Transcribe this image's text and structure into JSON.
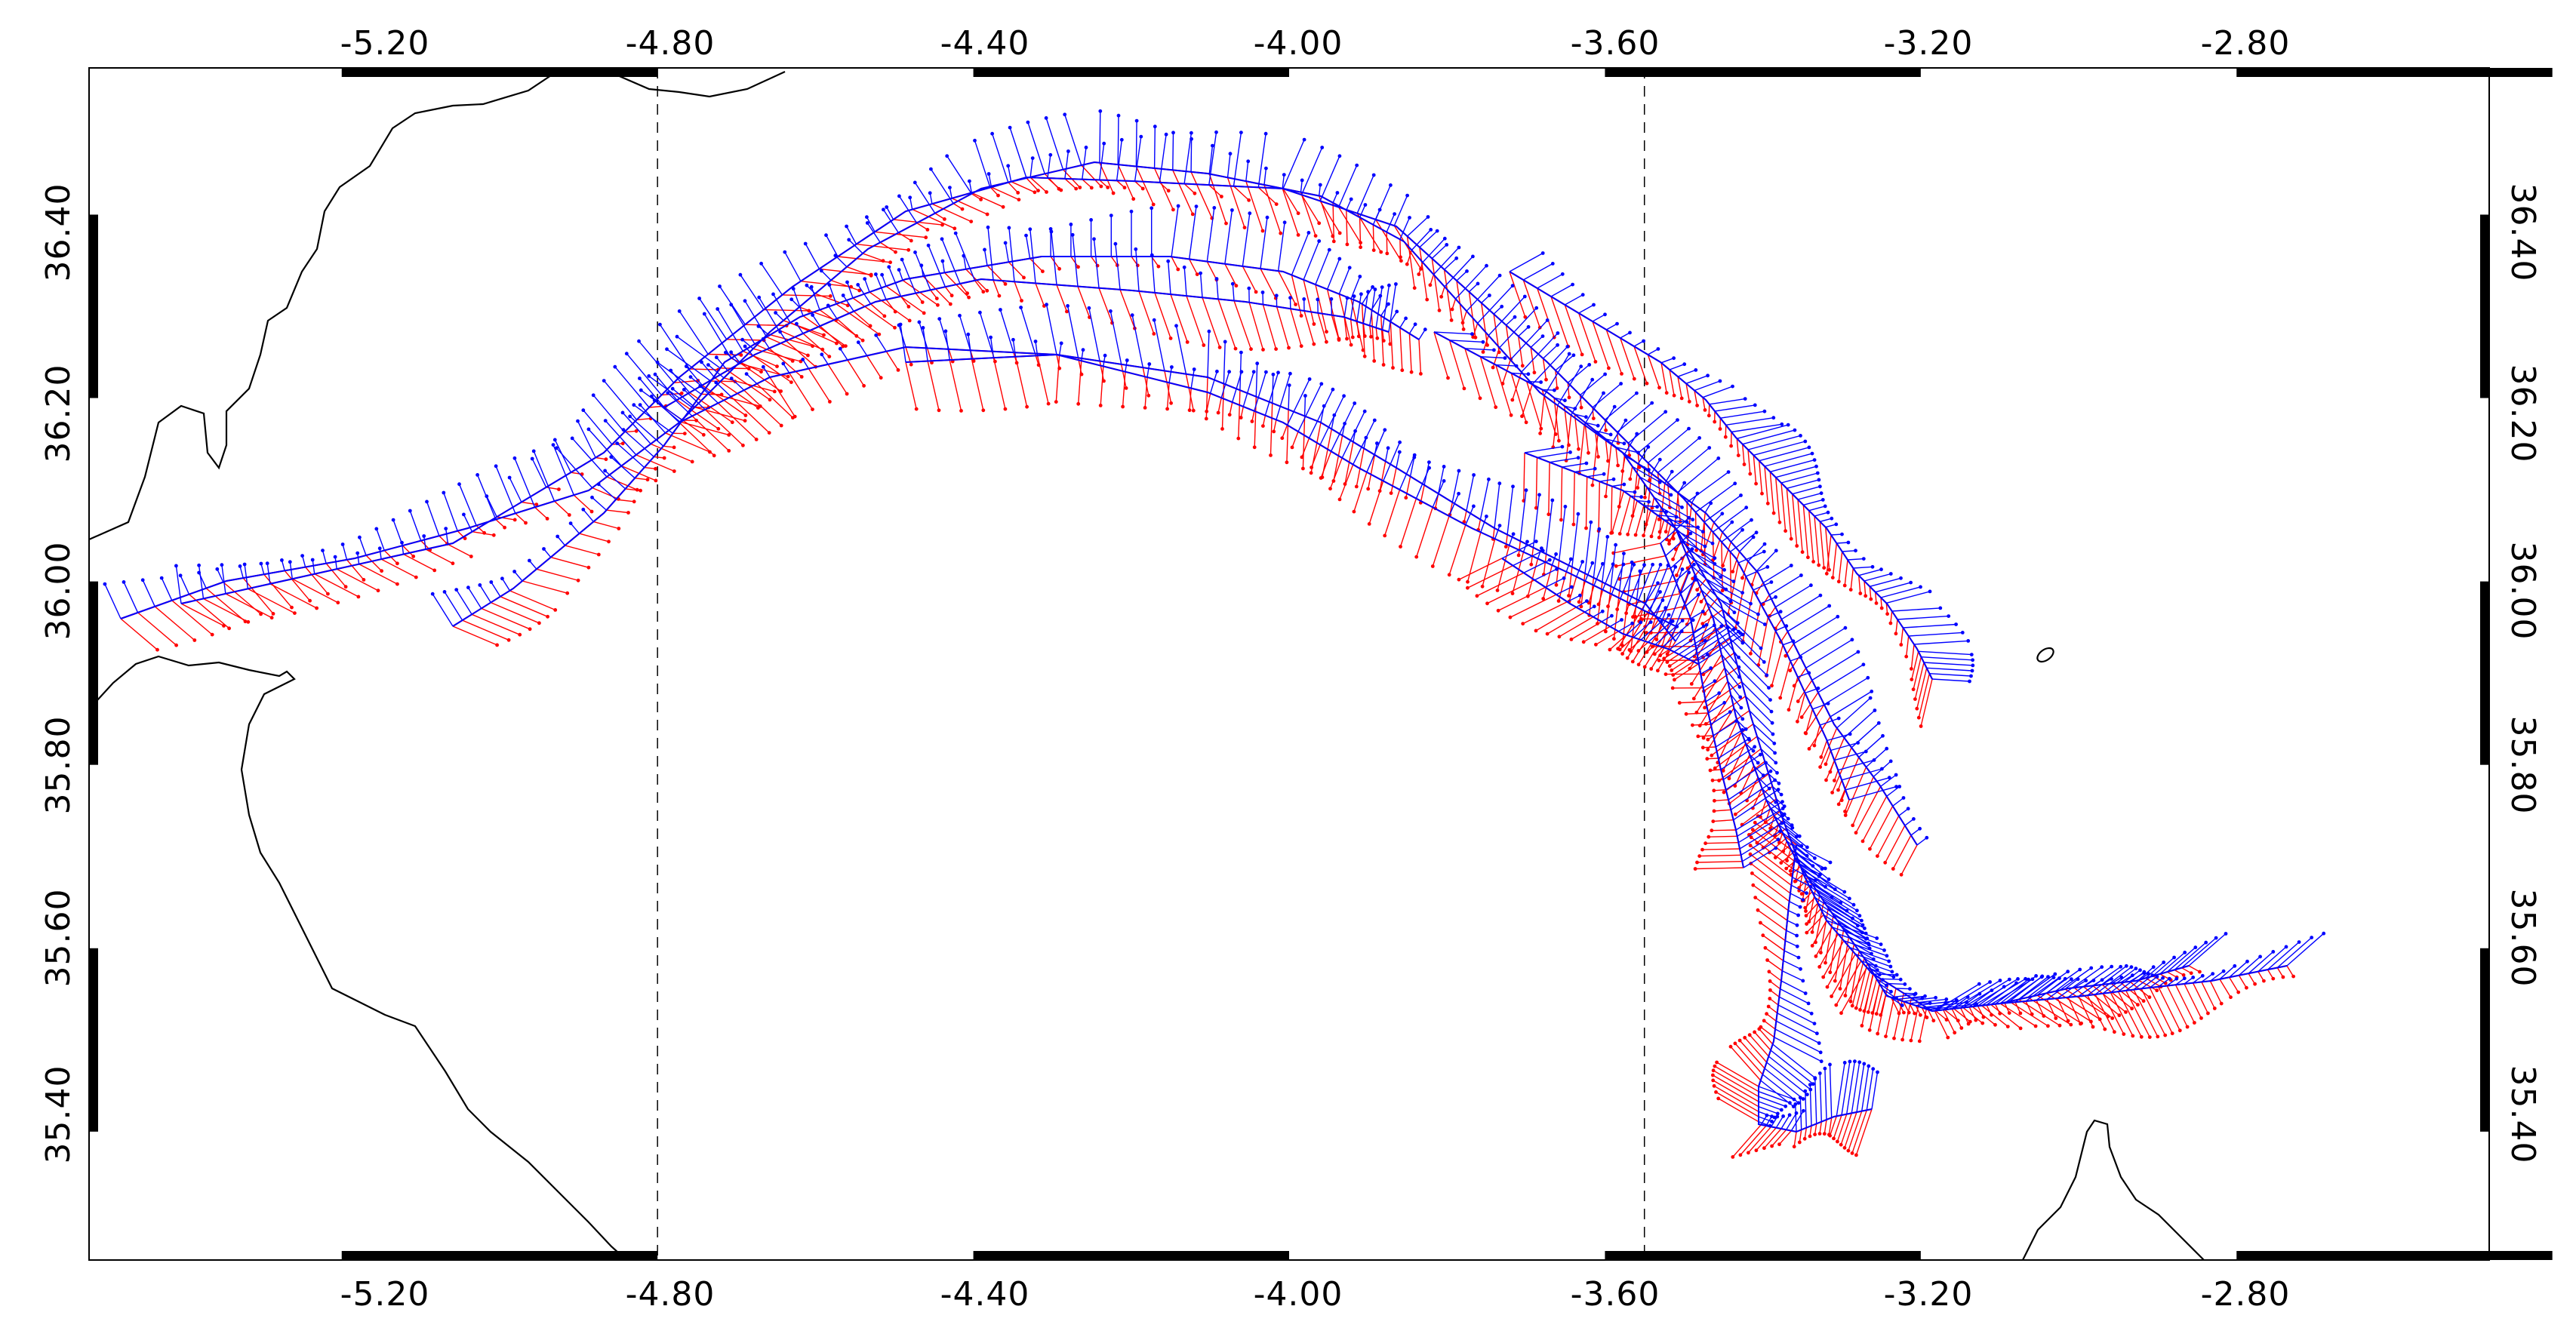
{
  "map": {
    "x_ticks": [
      "-5.20",
      "-4.80",
      "-4.40",
      "-4.00",
      "-3.60",
      "-3.20",
      "-2.80"
    ],
    "y_ticks": [
      "35.40",
      "35.60",
      "35.80",
      "36.00",
      "36.20",
      "36.40"
    ],
    "x_range": [
      -5.52,
      -2.48
    ],
    "y_range": [
      35.26,
      36.56
    ],
    "dashed_meridians": [
      -4.8,
      -3.55
    ],
    "colors": {
      "vector_blue": "#0000ff",
      "vector_red": "#ff0000",
      "coast": "#000000",
      "frame": "#000000"
    },
    "layers": [
      "coastline",
      "current-vectors-blue",
      "current-vectors-red"
    ]
  }
}
